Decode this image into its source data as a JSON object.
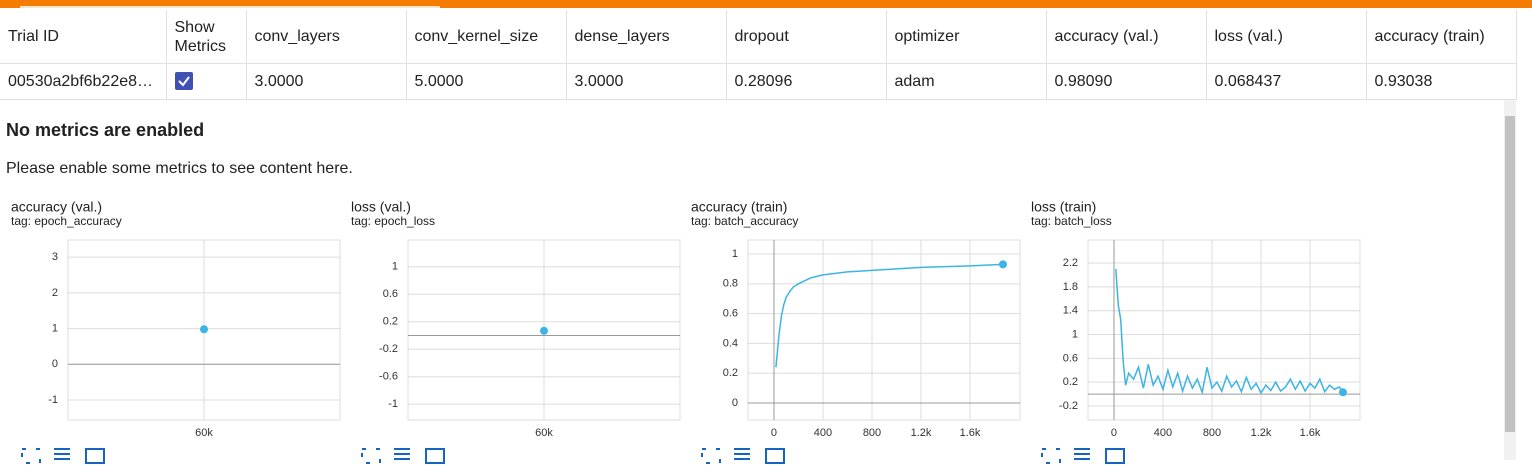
{
  "table": {
    "columns": [
      "Trial ID",
      "Show Metrics",
      "conv_layers",
      "conv_kernel_size",
      "dense_layers",
      "dropout",
      "optimizer",
      "accuracy (val.)",
      "loss (val.)",
      "accuracy (train)"
    ],
    "rows": [
      {
        "trial_id": "00530a2bf6b22e8…",
        "show_metrics": true,
        "cells": [
          "3.0000",
          "5.0000",
          "3.0000",
          "0.28096",
          "adam",
          "0.98090",
          "0.068437",
          "0.93038"
        ]
      }
    ]
  },
  "message": {
    "title": "No metrics are enabled",
    "body": "Please enable some metrics to see content here."
  },
  "charts": [
    {
      "type": "scatter",
      "title": "accuracy (val.)",
      "tag": "tag: epoch_accuracy",
      "color": "#3cb4e5",
      "x": [
        60000
      ],
      "values": [
        0.9809
      ],
      "xlim": [
        0,
        120000
      ],
      "ylim": [
        -1.56,
        3.48
      ],
      "xticks": [
        {
          "value": 60000,
          "label": "60k"
        }
      ],
      "yticks": [
        3,
        2,
        1,
        0,
        -1
      ]
    },
    {
      "type": "scatter",
      "title": "loss (val.)",
      "tag": "tag: epoch_loss",
      "color": "#3cb4e5",
      "x": [
        60000
      ],
      "values": [
        0.068437
      ],
      "xlim": [
        0,
        120000
      ],
      "ylim": [
        -1.23,
        1.39
      ],
      "xticks": [
        {
          "value": 60000,
          "label": "60k"
        }
      ],
      "yticks": [
        1,
        0.6,
        0.2,
        -0.2,
        -0.6,
        -1
      ]
    },
    {
      "type": "line",
      "title": "accuracy (train)",
      "tag": "tag: batch_accuracy",
      "color": "#3cb4e5",
      "x": [
        16,
        40,
        60,
        80,
        100,
        130,
        160,
        200,
        250,
        300,
        400,
        500,
        600,
        700,
        800,
        1000,
        1200,
        1400,
        1600,
        1869
      ],
      "values": [
        0.24,
        0.45,
        0.58,
        0.66,
        0.71,
        0.75,
        0.78,
        0.8,
        0.82,
        0.84,
        0.86,
        0.87,
        0.88,
        0.885,
        0.89,
        0.9,
        0.91,
        0.915,
        0.92,
        0.93038
      ],
      "xlim": [
        -212,
        2008
      ],
      "ylim": [
        -0.114,
        1.094
      ],
      "xticks": [
        0,
        400,
        800,
        {
          "value": 1200,
          "label": "1.2k"
        },
        {
          "value": 1600,
          "label": "1.6k"
        }
      ],
      "yticks": [
        1,
        0.8,
        0.6,
        0.4,
        0.2,
        0
      ]
    },
    {
      "type": "line",
      "title": "loss (train)",
      "tag": "tag: batch_loss",
      "color": "#3cb4e5",
      "x": [
        15,
        35,
        55,
        75,
        95,
        120,
        160,
        200,
        240,
        280,
        320,
        360,
        400,
        440,
        480,
        520,
        560,
        600,
        640,
        680,
        720,
        760,
        800,
        840,
        880,
        920,
        960,
        1000,
        1040,
        1080,
        1120,
        1160,
        1200,
        1240,
        1280,
        1320,
        1360,
        1400,
        1440,
        1480,
        1520,
        1560,
        1600,
        1640,
        1680,
        1720,
        1760,
        1800,
        1840,
        1869
      ],
      "values": [
        2.1,
        1.5,
        1.25,
        0.55,
        0.15,
        0.35,
        0.25,
        0.45,
        0.1,
        0.5,
        0.15,
        0.3,
        0.08,
        0.4,
        0.12,
        0.35,
        0.05,
        0.3,
        0.1,
        0.25,
        0.03,
        0.45,
        0.1,
        0.2,
        0.05,
        0.3,
        0.12,
        0.22,
        0.04,
        0.28,
        0.08,
        0.18,
        0.02,
        0.15,
        0.06,
        0.2,
        0.05,
        0.12,
        0.25,
        0.08,
        0.22,
        0.05,
        0.18,
        0.1,
        0.25,
        0.04,
        0.15,
        0.08,
        0.12,
        0.03
      ],
      "xlim": [
        -212,
        2008
      ],
      "ylim": [
        -0.435,
        2.587
      ],
      "xticks": [
        0,
        400,
        800,
        {
          "value": 1200,
          "label": "1.2k"
        },
        {
          "value": 1600,
          "label": "1.6k"
        }
      ],
      "yticks": [
        2.2,
        1.8,
        1.4,
        1,
        0.6,
        0.2,
        -0.2
      ]
    }
  ]
}
